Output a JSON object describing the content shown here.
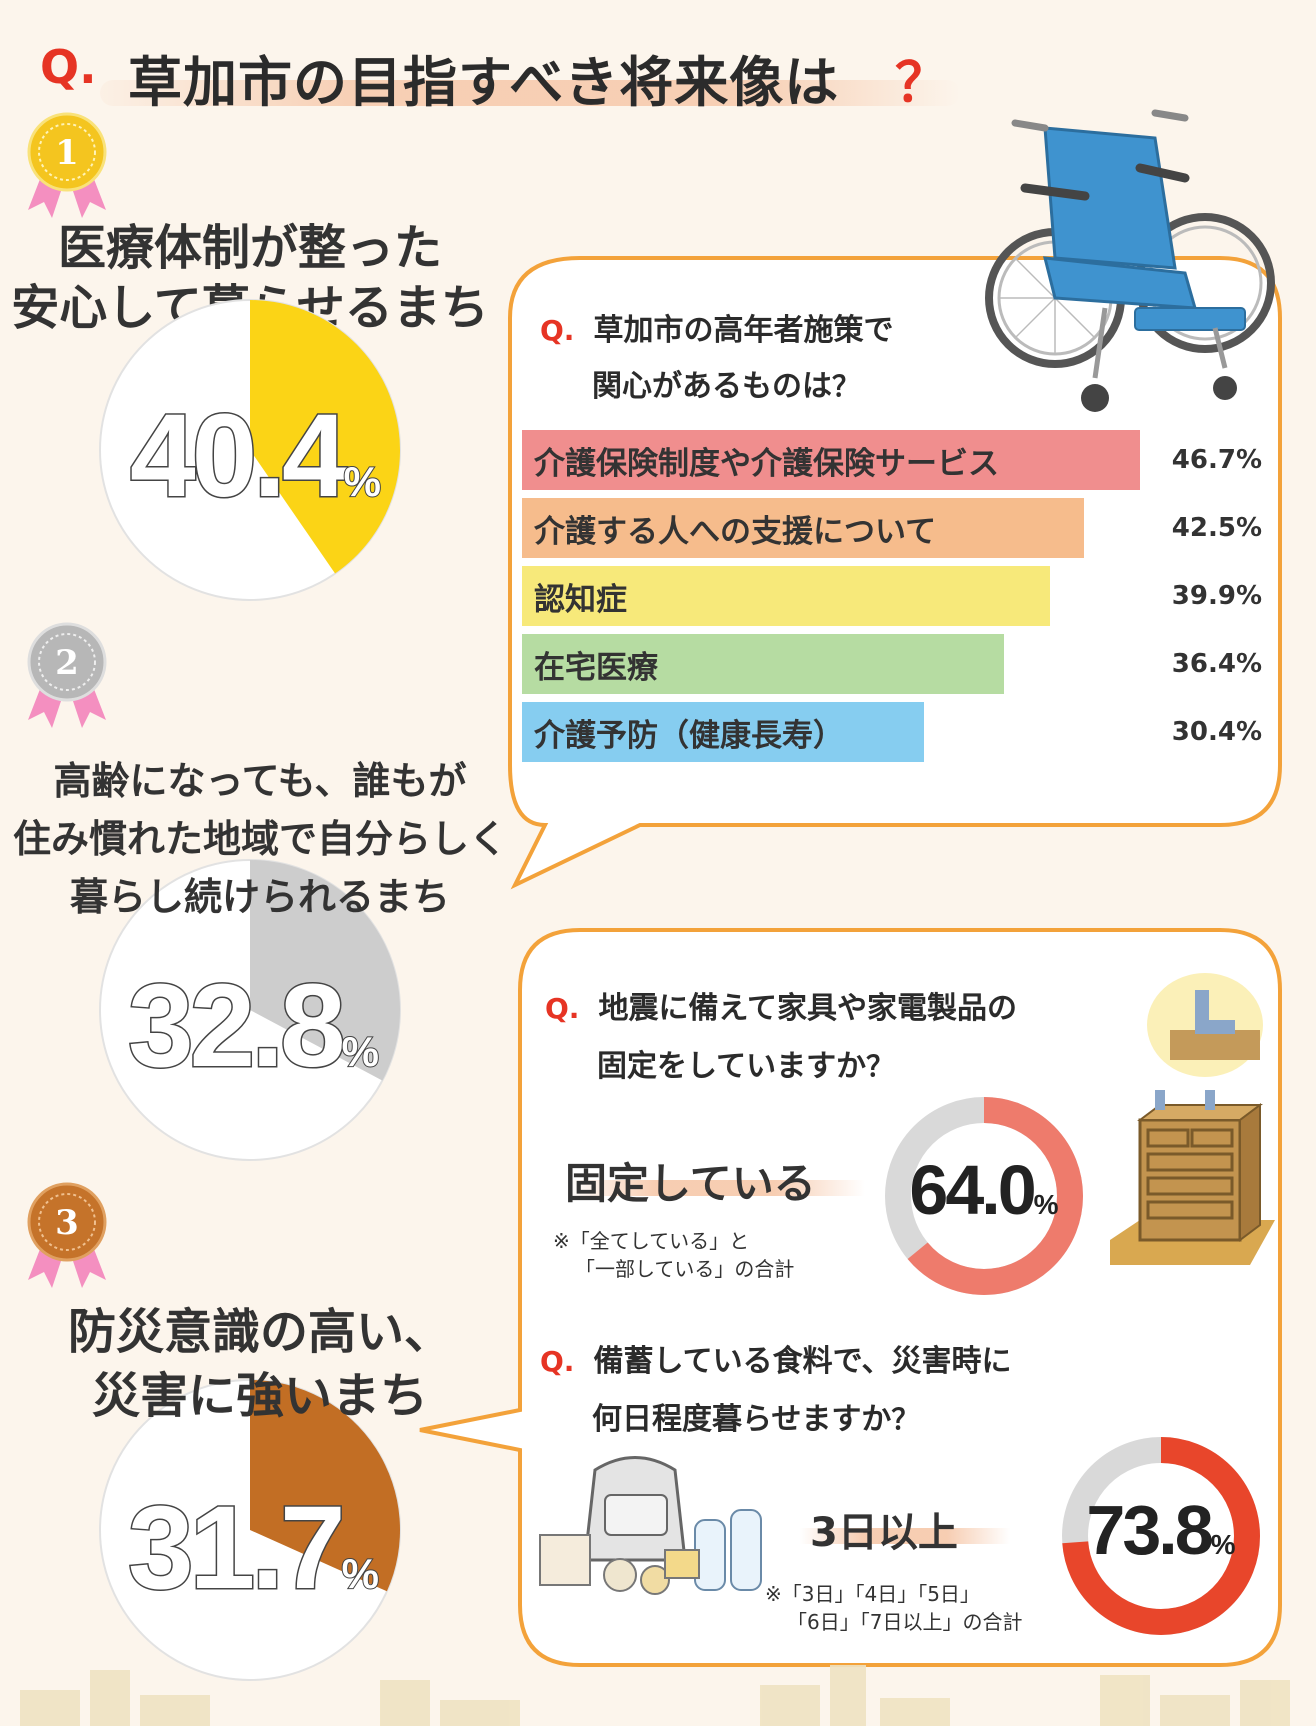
{
  "title": {
    "q_mark": "Q.",
    "text": "草加市の目指すべき将来像は",
    "question_mark": "？"
  },
  "rankings": [
    {
      "rank": "1",
      "medal_color": "#f4c51f",
      "line1": "医療体制が整った",
      "line2": "安心して暮らせるまち",
      "line3": "",
      "percent": 40.4,
      "number": "40.4",
      "unit": "%",
      "slice_color": "#fbd416"
    },
    {
      "rank": "2",
      "medal_color": "#b7b7b7",
      "line1": "高齢になっても、誰もが",
      "line2": "住み慣れた地域で自分らしく",
      "line3": "暮らし続けられるまち",
      "percent": 32.8,
      "number": "32.8",
      "unit": "%",
      "slice_color": "#cdcdcd"
    },
    {
      "rank": "3",
      "medal_color": "#c5732a",
      "line1": "防災意識の高い、",
      "line2": "災害に強いまち",
      "line3": "",
      "percent": 31.7,
      "number": "31.7",
      "unit": "%",
      "slice_color": "#c26e24"
    }
  ],
  "elderly": {
    "q_mark": "Q.",
    "line1": "草加市の高年者施策で",
    "line2": "関心があるものは",
    "question_mark": "？"
  },
  "chart_data": [
    {
      "type": "bar",
      "categories": [
        "介護保険制度や介護保険サービス",
        "介護する人への支援について",
        "認知症",
        "在宅医療",
        "介護予防（健康長寿）"
      ],
      "values": [
        46.7,
        42.5,
        39.9,
        36.4,
        30.4
      ],
      "value_labels": [
        "46.7%",
        "42.5%",
        "39.9%",
        "36.4%",
        "30.4%"
      ],
      "colors": [
        "#f08e8e",
        "#f6bc8c",
        "#f7e97a",
        "#b6dca2",
        "#86cdf0"
      ],
      "orientation": "horizontal",
      "xlim": [
        0,
        46.7
      ]
    },
    {
      "type": "pie",
      "labels": [
        "医療体制が整った安心して暮らせるまち"
      ],
      "values": [
        40.4
      ]
    },
    {
      "type": "pie",
      "labels": [
        "高齢になっても、誰もが住み慣れた地域で自分らしく暮らし続けられるまち"
      ],
      "values": [
        32.8
      ]
    },
    {
      "type": "pie",
      "labels": [
        "防災意識の高い、災害に強いまち"
      ],
      "values": [
        31.7
      ]
    },
    {
      "type": "pie",
      "labels": [
        "固定している"
      ],
      "values": [
        64.0
      ]
    },
    {
      "type": "pie",
      "labels": [
        "3日以上"
      ],
      "values": [
        73.8
      ]
    }
  ],
  "furniture": {
    "q_mark": "Q.",
    "line1": "地震に備えて家具や家電製品の",
    "line2": "固定をしていますか",
    "question_mark": "？",
    "answer": "固定している",
    "note1": "※「全てしている」と",
    "note2": "「一部している」の合計",
    "number": "64.0",
    "unit": "%",
    "percent": 64.0,
    "color": "#ee7b6c"
  },
  "food": {
    "q_mark": "Q.",
    "line1": "備蓄している食料で、災害時に",
    "line2": "何日程度暮らせますか",
    "question_mark": "？",
    "answer": "3日以上",
    "note1": "※「3日」「4日」「5日」",
    "note2": "「6日」「7日以上」の合計",
    "number": "73.8",
    "unit": "%",
    "percent": 73.8,
    "color": "#e8462b"
  },
  "colors": {
    "accent_red": "#e63424",
    "bubble_border": "#f3a23a",
    "donut_track": "#d9d9d9"
  },
  "icons": [
    "wheelchair-illustration",
    "bracket-icon",
    "dresser-illustration",
    "backpack-supplies-illustration",
    "town-silhouette"
  ]
}
